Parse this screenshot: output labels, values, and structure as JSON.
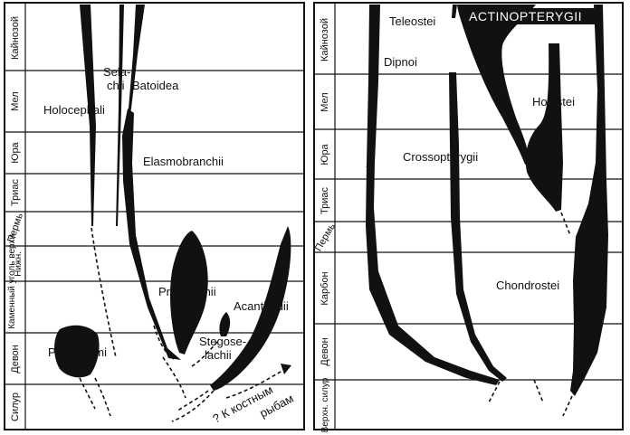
{
  "left_panel": {
    "eras": [
      "Кайнозой",
      "Мел",
      "Юра",
      "Триас",
      "Пермь",
      "Нижн.",
      "Каменный уголь верхн.",
      "Девон",
      "Силур"
    ],
    "taxa": {
      "selachii_1": "Sela-",
      "selachii_2": "chii",
      "batoidea": "Batoidea",
      "holocephali": "Holocephali",
      "elasmobranchii": "Elasmobranchii",
      "proselachii": "Proselachii",
      "acanthodii": "Acanthodii",
      "placodermi": "Placodermi",
      "stegoselachii_1": "Stegose-",
      "stegoselachii_2": "lachii",
      "bony_fish_1": "? К костным",
      "bony_fish_2": "рыбам"
    }
  },
  "right_panel": {
    "eras": [
      "Кайнозой",
      "Мел",
      "Юра",
      "Триас",
      "Пермь",
      "Карбон",
      "Девон",
      "Верхн. силур"
    ],
    "taxa": {
      "teleostei": "Teleostei",
      "actinopterygii": "ACTINOPTERYGII",
      "dipnoi": "Dipnoi",
      "holostei": "Holostei",
      "crossopterygii": "Crossopterygii",
      "chondrostei": "Chondrostei"
    }
  }
}
